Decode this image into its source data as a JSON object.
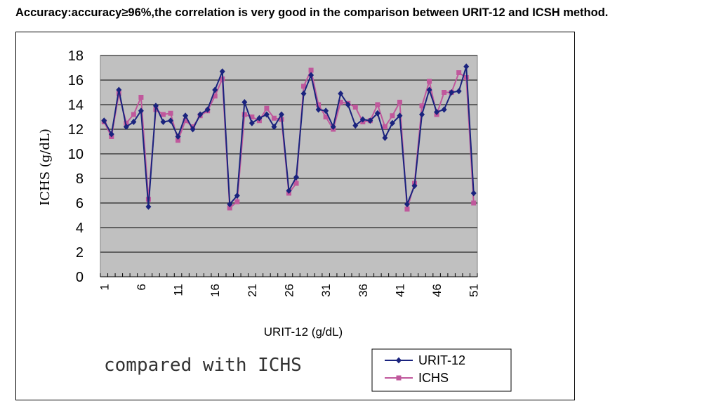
{
  "page": {
    "heading": "Accuracy:accuracy≥96%,the correlation is very good in the comparison between URIT-12 and ICSH method."
  },
  "chart_data": {
    "type": "line",
    "xlabel": "URIT-12 (g/dL)",
    "ylabel": "ICHS (g/dL)",
    "note": "compared with ICHS",
    "ylim": [
      0,
      18
    ],
    "yticks": [
      0,
      2,
      4,
      6,
      8,
      10,
      12,
      14,
      16,
      18
    ],
    "xlim": [
      1,
      51
    ],
    "xtick_labels": [
      "1",
      "6",
      "11",
      "16",
      "21",
      "26",
      "31",
      "36",
      "41",
      "46",
      "51"
    ],
    "grid": true,
    "legend_position": "bottom-right",
    "x": [
      1,
      2,
      3,
      4,
      5,
      6,
      7,
      8,
      9,
      10,
      11,
      12,
      13,
      14,
      15,
      16,
      17,
      18,
      19,
      20,
      21,
      22,
      23,
      24,
      25,
      26,
      27,
      28,
      29,
      30,
      31,
      32,
      33,
      34,
      35,
      36,
      37,
      38,
      39,
      40,
      41,
      42,
      43,
      44,
      45,
      46,
      47,
      48,
      49,
      50,
      51
    ],
    "series": [
      {
        "name": "URIT-12",
        "color": "#1a237e",
        "marker": "diamond",
        "values": [
          12.7,
          11.6,
          15.2,
          12.2,
          12.6,
          13.5,
          5.7,
          13.9,
          12.6,
          12.7,
          11.4,
          13.1,
          12.0,
          13.2,
          13.6,
          15.2,
          16.7,
          5.9,
          6.6,
          14.2,
          12.5,
          12.9,
          13.2,
          12.2,
          13.2,
          7.0,
          8.1,
          14.9,
          16.4,
          13.6,
          13.5,
          12.2,
          14.9,
          14.0,
          12.3,
          12.8,
          12.7,
          13.3,
          11.3,
          12.5,
          13.1,
          5.9,
          7.4,
          13.2,
          15.2,
          13.4,
          13.6,
          15.0,
          15.1,
          17.1,
          6.8
        ]
      },
      {
        "name": "ICHS",
        "color": "#c0589c",
        "marker": "square",
        "values": [
          12.6,
          11.4,
          14.9,
          12.5,
          13.2,
          14.6,
          6.3,
          13.6,
          13.2,
          13.3,
          11.1,
          12.7,
          12.2,
          13.1,
          13.5,
          14.7,
          16.1,
          5.6,
          6.1,
          13.2,
          13.0,
          12.7,
          13.7,
          12.9,
          12.8,
          6.8,
          7.6,
          15.5,
          16.8,
          14.0,
          13.0,
          12.0,
          14.2,
          14.1,
          13.8,
          12.6,
          12.7,
          14.0,
          12.2,
          13.1,
          14.2,
          5.5,
          7.6,
          13.9,
          15.9,
          13.2,
          15.0,
          15.0,
          16.6,
          16.2,
          6.0
        ]
      }
    ]
  }
}
